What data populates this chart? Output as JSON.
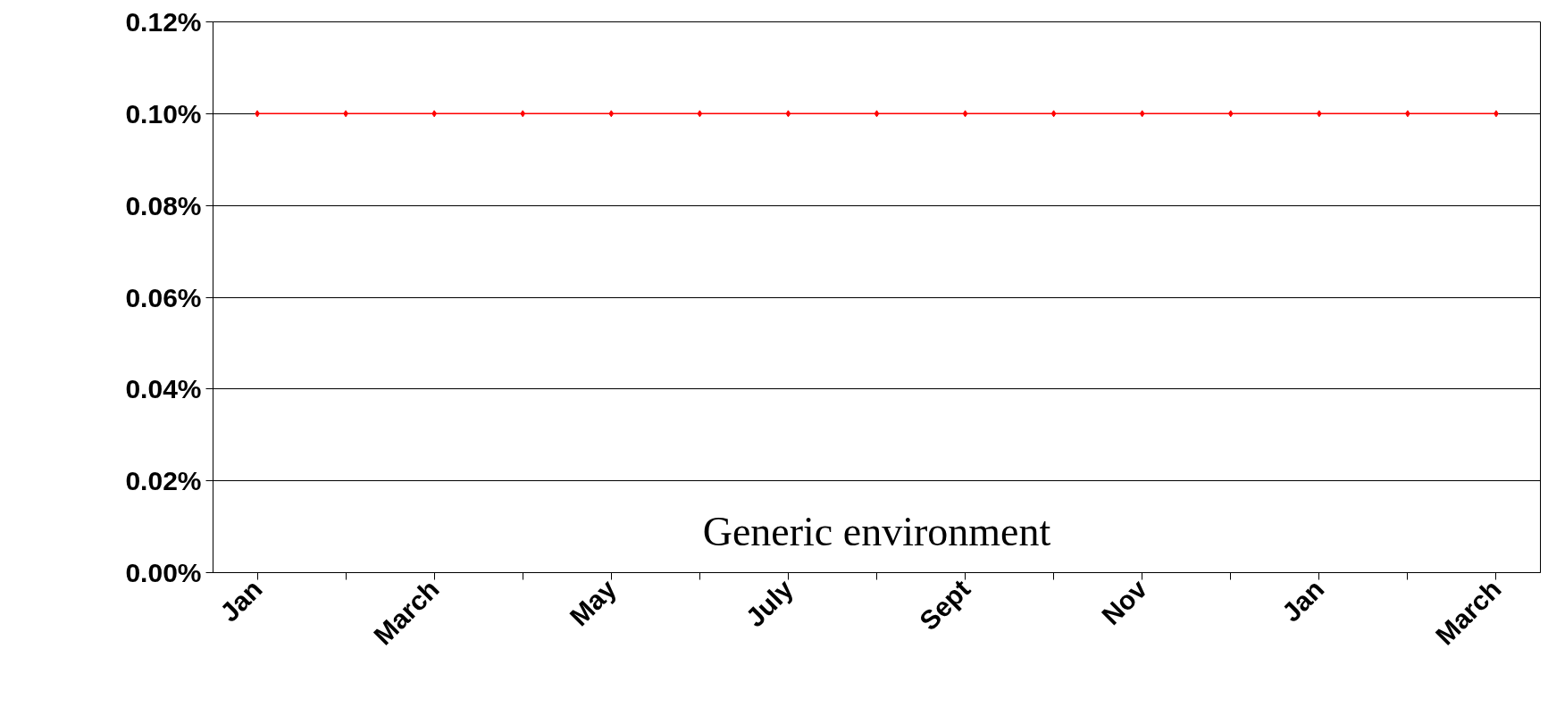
{
  "chart_data": {
    "type": "line",
    "categories": [
      "Jan",
      null,
      "March",
      null,
      "May",
      null,
      "July",
      null,
      "Sept",
      null,
      "Nov",
      null,
      "Jan",
      null,
      "March"
    ],
    "series": [
      {
        "color": "#ff0000",
        "values": [
          0.1,
          0.1,
          0.1,
          0.1,
          0.1,
          0.1,
          0.1,
          0.1,
          0.1,
          0.1,
          0.1,
          0.1,
          0.1,
          0.1,
          0.1
        ]
      }
    ],
    "ylim": [
      0,
      0.12
    ],
    "yticks": [
      {
        "value": 0,
        "label": "0.00%"
      },
      {
        "value": 0.02,
        "label": "0.02%"
      },
      {
        "value": 0.04,
        "label": "0.04%"
      },
      {
        "value": 0.06,
        "label": "0.06%"
      },
      {
        "value": 0.08,
        "label": "0.08%"
      },
      {
        "value": 0.1,
        "label": "0.10%"
      },
      {
        "value": 0.12,
        "label": "0.12%"
      }
    ],
    "grid": "y",
    "marker": "diamond",
    "line_style": "solid",
    "annotations": [
      "Generic environment"
    ]
  }
}
